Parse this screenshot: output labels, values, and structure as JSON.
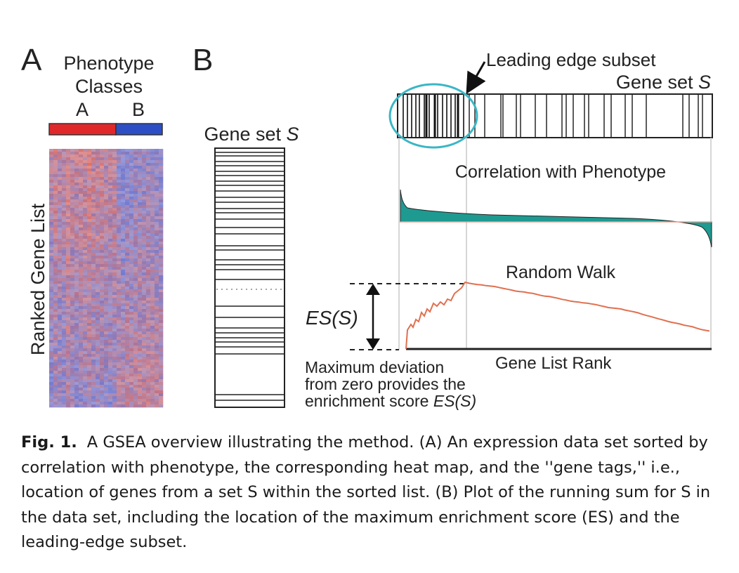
{
  "panel_a": {
    "letter": "A",
    "title_line1": "Phenotype",
    "title_line2": "Classes",
    "class_a": "A",
    "class_b": "B",
    "class_a_color": "#e0282b",
    "class_b_color": "#2d4ec4",
    "y_label": "Ranked Gene List",
    "heatmap_red": "#d8584f",
    "heatmap_blue": "#5a63c8"
  },
  "panel_b": {
    "letter": "B",
    "gene_set_label": "Gene set ",
    "gene_set_symbol": "S",
    "leading_edge_label": "Leading edge subset",
    "correlation_label": "Correlation with Phenotype",
    "random_walk_label": "Random Walk",
    "es_label": "ES(S)",
    "gene_list_rank_label": "Gene List Rank",
    "max_dev_line1": "Maximum deviation",
    "max_dev_line2": "from zero provides the",
    "max_dev_line3": "enrichment score ",
    "max_dev_es": "ES(S)",
    "teal_color": "#1e9a91",
    "walk_color": "#e07050",
    "circle_color": "#3ab6c6"
  },
  "caption": {
    "label": "Fig. 1.",
    "text": "A GSEA overview illustrating the method. (A) An expression data set sorted by correlation with phenotype, the corresponding heat map, and the ''gene tags,'' i.e., location of genes from a set S within the sorted list. (B) Plot of the running sum for S in the data set, including the location of the maximum enrichment score (ES) and the leading-edge subset."
  }
}
